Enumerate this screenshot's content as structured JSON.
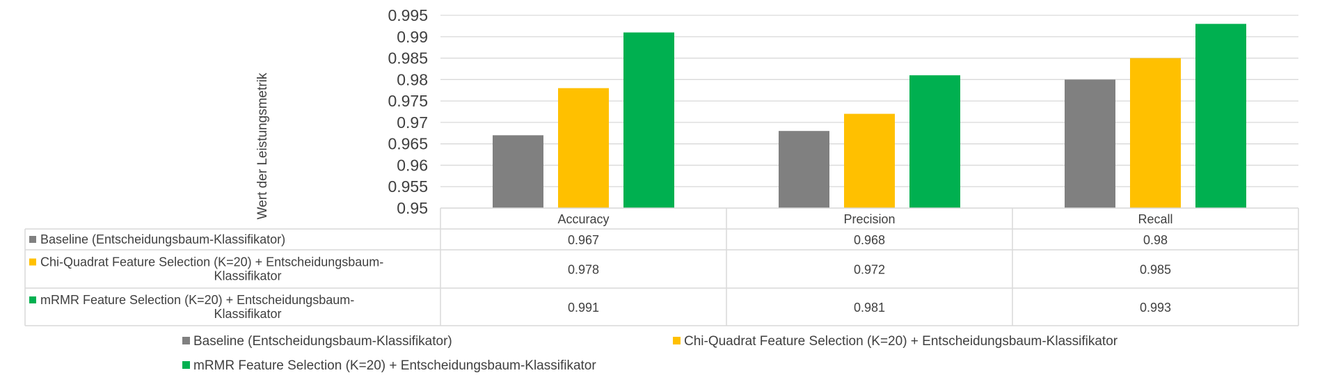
{
  "chart_data": {
    "type": "bar",
    "categories": [
      "Accuracy",
      "Precision",
      "Recall"
    ],
    "series": [
      {
        "name": "Baseline (Entscheidungsbaum-Klassifikator)",
        "table_label": [
          "Baseline (Entscheidungsbaum-Klassifikator)"
        ],
        "values": [
          0.967,
          0.968,
          0.98
        ],
        "color": "#808080"
      },
      {
        "name": "Chi-Quadrat Feature Selection (K=20) + Entscheidungsbaum-Klassifikator",
        "table_label": [
          "Chi-Quadrat Feature Selection (K=20) + Entscheidungsbaum-",
          "Klassifikator"
        ],
        "values": [
          0.978,
          0.972,
          0.985
        ],
        "color": "#FFC000"
      },
      {
        "name": "mRMR Feature Selection (K=20)  + Entscheidungsbaum-Klassifikator",
        "table_label": [
          "mRMR Feature Selection (K=20)  + Entscheidungsbaum-",
          "Klassifikator"
        ],
        "values": [
          0.991,
          0.981,
          0.993
        ],
        "color": "#00B050"
      }
    ],
    "value_labels": [
      [
        "0.967",
        "0.968",
        "0.98"
      ],
      [
        "0.978",
        "0.972",
        "0.985"
      ],
      [
        "0.991",
        "0.981",
        "0.993"
      ]
    ],
    "title": "",
    "xlabel": "",
    "ylabel": "Wert der Leistungsmetrik",
    "ylim": [
      0.95,
      0.995
    ],
    "yticks": [
      "0.95",
      "0.955",
      "0.96",
      "0.965",
      "0.97",
      "0.975",
      "0.98",
      "0.985",
      "0.99",
      "0.995"
    ],
    "grid": true,
    "data_table": true,
    "legend_position": "bottom"
  }
}
